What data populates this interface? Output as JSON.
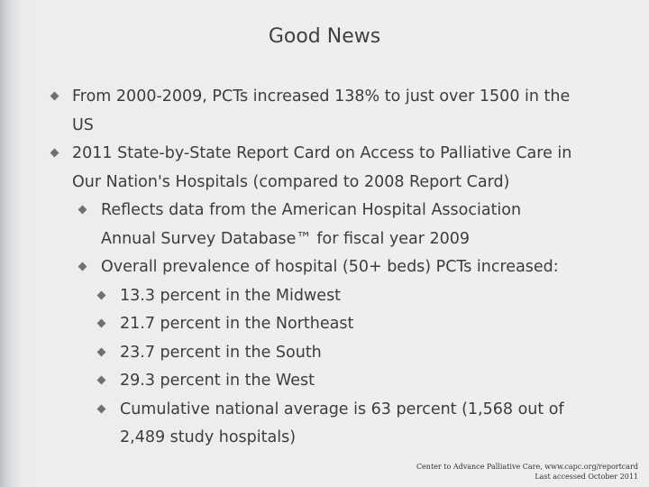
{
  "slide": {
    "title": "Good News",
    "bullets": [
      {
        "line1": "From 2000-2009, PCTs increased 138%  to just over 1500 in the",
        "line2": "US"
      },
      {
        "line1": "2011 State-by-State Report Card on Access to Palliative Care in",
        "line2": "Our Nation's Hospitals (compared to 2008 Report Card)"
      },
      {
        "line1": "Reflects data from the American Hospital Association",
        "line2": "Annual Survey Database™ for fiscal year 2009"
      },
      {
        "line1": "Overall prevalence of hospital (50+ beds) PCTs increased:"
      },
      {
        "line1": "13.3 percent in the Midwest"
      },
      {
        "line1": "21.7 percent in the Northeast"
      },
      {
        "line1": "23.7 percent in the South"
      },
      {
        "line1": "29.3 percent in the West"
      },
      {
        "line1": "Cumulative national average is 63 percent (1,568 out of",
        "line2": "2,489 study hospitals)"
      }
    ],
    "footer": {
      "line1": "Center to Advance Palliative Care, www.capc.org/reportcard",
      "line2": "Last accessed October 2011"
    }
  },
  "colors": {
    "bullet": "#707070",
    "text": "#3d3d3d"
  }
}
